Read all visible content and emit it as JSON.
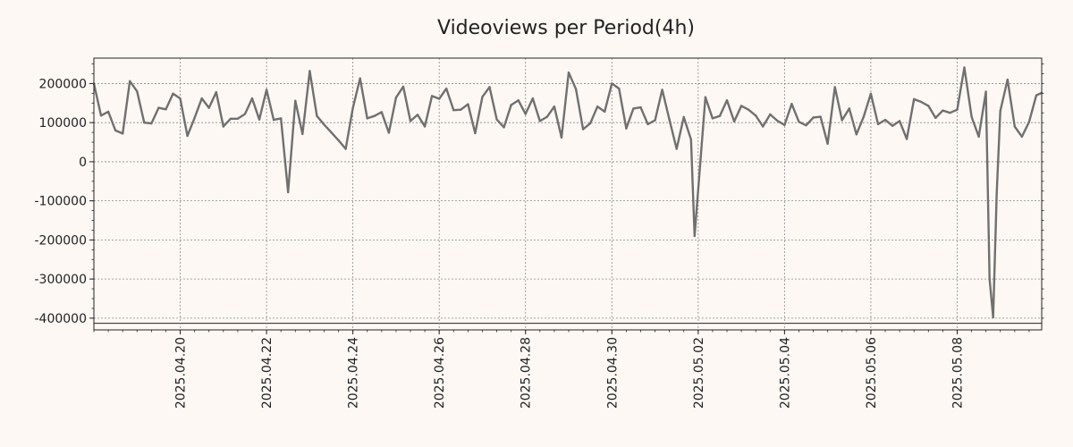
{
  "colors": {
    "background": "#fdf8f4",
    "line": "#707070",
    "grid": "#8a8a8a",
    "axis": "#222222"
  },
  "chart_data": {
    "type": "line",
    "title": "Videoviews per Period(4h)",
    "xlabel": "",
    "ylabel": "",
    "grid": true,
    "legend": "none",
    "x_start": "2025-04-18 00:00",
    "x_end": "2025-05-09 23:00",
    "ylim": [
      -430000,
      265000
    ],
    "baseline_value": -413000,
    "x_tick_labels": [
      "2025.04.20",
      "2025.04.22",
      "2025.04.24",
      "2025.04.26",
      "2025.04.28",
      "2025.04.30",
      "2025.05.02",
      "2025.05.04",
      "2025.05.06",
      "2025.05.08"
    ],
    "x_tick_dates": [
      "2025-04-20",
      "2025-04-22",
      "2025-04-24",
      "2025-04-26",
      "2025-04-28",
      "2025-04-30",
      "2025-05-02",
      "2025-05-04",
      "2025-05-06",
      "2025-05-08"
    ],
    "y_tick_labels": [
      "200000",
      "100000",
      "0",
      "-100000",
      "-200000",
      "-300000",
      "-400000"
    ],
    "y_ticks": [
      200000,
      100000,
      0,
      -100000,
      -200000,
      -300000,
      -400000
    ],
    "series": [
      {
        "points": [
          [
            "2025-04-18 00:00",
            200000
          ],
          [
            "2025-04-18 04:00",
            118000
          ],
          [
            "2025-04-18 08:00",
            128000
          ],
          [
            "2025-04-18 12:00",
            80000
          ],
          [
            "2025-04-18 16:00",
            72000
          ],
          [
            "2025-04-18 20:00",
            206000
          ],
          [
            "2025-04-19 00:00",
            180000
          ],
          [
            "2025-04-19 04:00",
            100000
          ],
          [
            "2025-04-19 08:00",
            98000
          ],
          [
            "2025-04-19 12:00",
            138000
          ],
          [
            "2025-04-19 16:00",
            134000
          ],
          [
            "2025-04-19 20:00",
            174000
          ],
          [
            "2025-04-20 00:00",
            162000
          ],
          [
            "2025-04-20 04:00",
            66000
          ],
          [
            "2025-04-20 08:00",
            112000
          ],
          [
            "2025-04-20 12:00",
            162000
          ],
          [
            "2025-04-20 16:00",
            138000
          ],
          [
            "2025-04-20 20:00",
            178000
          ],
          [
            "2025-04-21 00:00",
            90000
          ],
          [
            "2025-04-21 04:00",
            110000
          ],
          [
            "2025-04-21 08:00",
            110000
          ],
          [
            "2025-04-21 12:00",
            122000
          ],
          [
            "2025-04-21 16:00",
            162000
          ],
          [
            "2025-04-21 20:00",
            108000
          ],
          [
            "2025-04-22 00:00",
            184000
          ],
          [
            "2025-04-22 04:00",
            107000
          ],
          [
            "2025-04-22 08:00",
            111000
          ],
          [
            "2025-04-22 12:00",
            -78000
          ],
          [
            "2025-04-22 16:00",
            156000
          ],
          [
            "2025-04-22 20:00",
            71000
          ],
          [
            "2025-04-23 00:00",
            232000
          ],
          [
            "2025-04-23 04:00",
            117000
          ],
          [
            "2025-04-23 08:00",
            95000
          ],
          [
            "2025-04-23 12:00",
            75000
          ],
          [
            "2025-04-23 16:00",
            55000
          ],
          [
            "2025-04-23 20:00",
            33000
          ],
          [
            "2025-04-24 00:00",
            137000
          ],
          [
            "2025-04-24 04:00",
            213000
          ],
          [
            "2025-04-24 08:00",
            111000
          ],
          [
            "2025-04-24 12:00",
            117000
          ],
          [
            "2025-04-24 16:00",
            127000
          ],
          [
            "2025-04-24 20:00",
            74000
          ],
          [
            "2025-04-25 00:00",
            164000
          ],
          [
            "2025-04-25 04:00",
            192000
          ],
          [
            "2025-04-25 08:00",
            104000
          ],
          [
            "2025-04-25 12:00",
            120000
          ],
          [
            "2025-04-25 16:00",
            90000
          ],
          [
            "2025-04-25 20:00",
            168000
          ],
          [
            "2025-04-26 00:00",
            161000
          ],
          [
            "2025-04-26 04:00",
            187000
          ],
          [
            "2025-04-26 08:00",
            132000
          ],
          [
            "2025-04-26 12:00",
            133000
          ],
          [
            "2025-04-26 16:00",
            147000
          ],
          [
            "2025-04-26 20:00",
            73000
          ],
          [
            "2025-04-27 00:00",
            166000
          ],
          [
            "2025-04-27 04:00",
            191000
          ],
          [
            "2025-04-27 08:00",
            108000
          ],
          [
            "2025-04-27 12:00",
            88000
          ],
          [
            "2025-04-27 16:00",
            145000
          ],
          [
            "2025-04-27 20:00",
            157000
          ],
          [
            "2025-04-28 00:00",
            122000
          ],
          [
            "2025-04-28 04:00",
            162000
          ],
          [
            "2025-04-28 08:00",
            104000
          ],
          [
            "2025-04-28 12:00",
            115000
          ],
          [
            "2025-04-28 16:00",
            141000
          ],
          [
            "2025-04-28 20:00",
            62000
          ],
          [
            "2025-04-29 00:00",
            228000
          ],
          [
            "2025-04-29 04:00",
            186000
          ],
          [
            "2025-04-29 08:00",
            83000
          ],
          [
            "2025-04-29 12:00",
            98000
          ],
          [
            "2025-04-29 16:00",
            141000
          ],
          [
            "2025-04-29 20:00",
            128000
          ],
          [
            "2025-04-30 00:00",
            200000
          ],
          [
            "2025-04-30 04:00",
            187000
          ],
          [
            "2025-04-30 08:00",
            85000
          ],
          [
            "2025-04-30 12:00",
            136000
          ],
          [
            "2025-04-30 16:00",
            139000
          ],
          [
            "2025-04-30 20:00",
            96000
          ],
          [
            "2025-05-01 00:00",
            106000
          ],
          [
            "2025-05-01 04:00",
            184000
          ],
          [
            "2025-05-01 08:00",
            108000
          ],
          [
            "2025-05-01 12:00",
            33000
          ],
          [
            "2025-05-01 16:00",
            114000
          ],
          [
            "2025-05-01 20:00",
            57000
          ],
          [
            "2025-05-01 22:00",
            -190000
          ],
          [
            "2025-05-02 04:00",
            165000
          ],
          [
            "2025-05-02 08:00",
            111000
          ],
          [
            "2025-05-02 12:00",
            117000
          ],
          [
            "2025-05-02 16:00",
            157000
          ],
          [
            "2025-05-02 20:00",
            103000
          ],
          [
            "2025-05-03 00:00",
            143000
          ],
          [
            "2025-05-03 04:00",
            133000
          ],
          [
            "2025-05-03 08:00",
            118000
          ],
          [
            "2025-05-03 12:00",
            90000
          ],
          [
            "2025-05-03 16:00",
            121000
          ],
          [
            "2025-05-03 20:00",
            105000
          ],
          [
            "2025-05-04 00:00",
            94000
          ],
          [
            "2025-05-04 04:00",
            148000
          ],
          [
            "2025-05-04 08:00",
            102000
          ],
          [
            "2025-05-04 12:00",
            93000
          ],
          [
            "2025-05-04 16:00",
            113000
          ],
          [
            "2025-05-04 20:00",
            115000
          ],
          [
            "2025-05-05 00:00",
            46000
          ],
          [
            "2025-05-05 04:00",
            191000
          ],
          [
            "2025-05-05 08:00",
            106000
          ],
          [
            "2025-05-05 12:00",
            136000
          ],
          [
            "2025-05-05 16:00",
            70000
          ],
          [
            "2025-05-05 20:00",
            115000
          ],
          [
            "2025-05-06 00:00",
            174000
          ],
          [
            "2025-05-06 04:00",
            96000
          ],
          [
            "2025-05-06 08:00",
            107000
          ],
          [
            "2025-05-06 12:00",
            92000
          ],
          [
            "2025-05-06 16:00",
            104000
          ],
          [
            "2025-05-06 20:00",
            58000
          ],
          [
            "2025-05-07 00:00",
            160000
          ],
          [
            "2025-05-07 04:00",
            153000
          ],
          [
            "2025-05-07 08:00",
            143000
          ],
          [
            "2025-05-07 12:00",
            112000
          ],
          [
            "2025-05-07 16:00",
            131000
          ],
          [
            "2025-05-07 20:00",
            125000
          ],
          [
            "2025-05-08 00:00",
            133000
          ],
          [
            "2025-05-08 04:00",
            241000
          ],
          [
            "2025-05-08 08:00",
            115000
          ],
          [
            "2025-05-08 12:00",
            64000
          ],
          [
            "2025-05-08 16:00",
            179000
          ],
          [
            "2025-05-08 18:00",
            -300000
          ],
          [
            "2025-05-08 20:00",
            -398000
          ],
          [
            "2025-05-08 22:00",
            -80000
          ],
          [
            "2025-05-09 00:00",
            130000
          ],
          [
            "2025-05-09 04:00",
            210000
          ],
          [
            "2025-05-09 08:00",
            90000
          ],
          [
            "2025-05-09 12:00",
            64000
          ],
          [
            "2025-05-09 16:00",
            102000
          ],
          [
            "2025-05-09 20:00",
            170000
          ],
          [
            "2025-05-09 23:00",
            176000
          ]
        ]
      }
    ]
  }
}
